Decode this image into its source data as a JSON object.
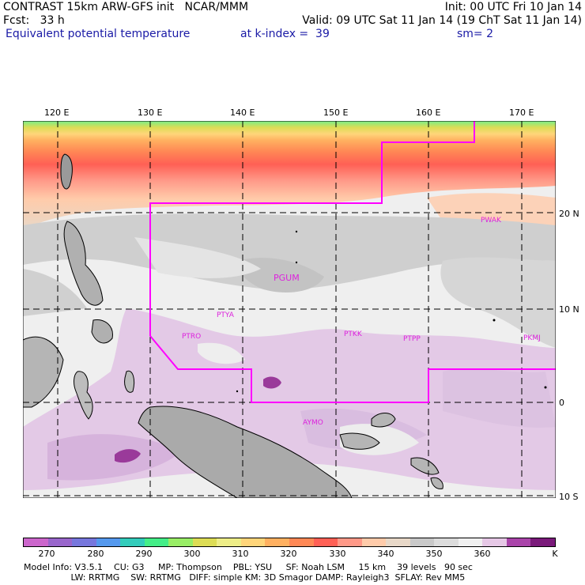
{
  "header": {
    "line1_left": "CONTRAST 15km ARW-GFS init   NCAR/MMM",
    "line1_right": "Init: 00 UTC Fri 10 Jan 14",
    "line2_left": "Fcst:   33 h",
    "line2_right": "Valid: 09 UTC Sat 11 Jan 14 (19 ChT Sat 11 Jan 14)",
    "line3_left": "Equivalent potential temperature",
    "line3_mid": "at k-index =  39",
    "line3_right": "sm= 2"
  },
  "map": {
    "lon_labels": [
      "120 E",
      "130 E",
      "140 E",
      "150 E",
      "160 E",
      "170 E"
    ],
    "lat_labels": [
      "20 N",
      "10 N",
      "0",
      "10 S"
    ],
    "stations": [
      {
        "id": "PWAK"
      },
      {
        "id": "PGUM"
      },
      {
        "id": "PTYA"
      },
      {
        "id": "PTRO"
      },
      {
        "id": "PTKK"
      },
      {
        "id": "PTPP"
      },
      {
        "id": "PKMJ"
      },
      {
        "id": "AYMO"
      }
    ]
  },
  "colorbar": {
    "labels": [
      "270",
      "280",
      "290",
      "300",
      "310",
      "320",
      "330",
      "340",
      "350",
      "360"
    ],
    "unit": "K",
    "colors": [
      "#cc66cc",
      "#9966cc",
      "#7777dd",
      "#5599ee",
      "#33ccbb",
      "#44ee88",
      "#99ee66",
      "#dddd55",
      "#eeee88",
      "#ffd57a",
      "#ffb060",
      "#ff8855",
      "#ff6055",
      "#ff9988",
      "#ffcbaa",
      "#e8d8c8",
      "#c9c9c9",
      "#dcdcdc",
      "#f0f0f0",
      "#e6c8e6",
      "#aa44aa",
      "#7a1a7a"
    ]
  },
  "model_info": {
    "line1": "Model Info: V3.5.1    CU: G3     MP: Thompson    PBL: YSU     SF: Noah LSM     15 km    39 levels   90 sec",
    "line2": "                 LW: RRTMG    SW: RRTMG   DIFF: simple KM: 3D Smagor DAMP: Rayleigh3  SFLAY: Rev MM5"
  }
}
